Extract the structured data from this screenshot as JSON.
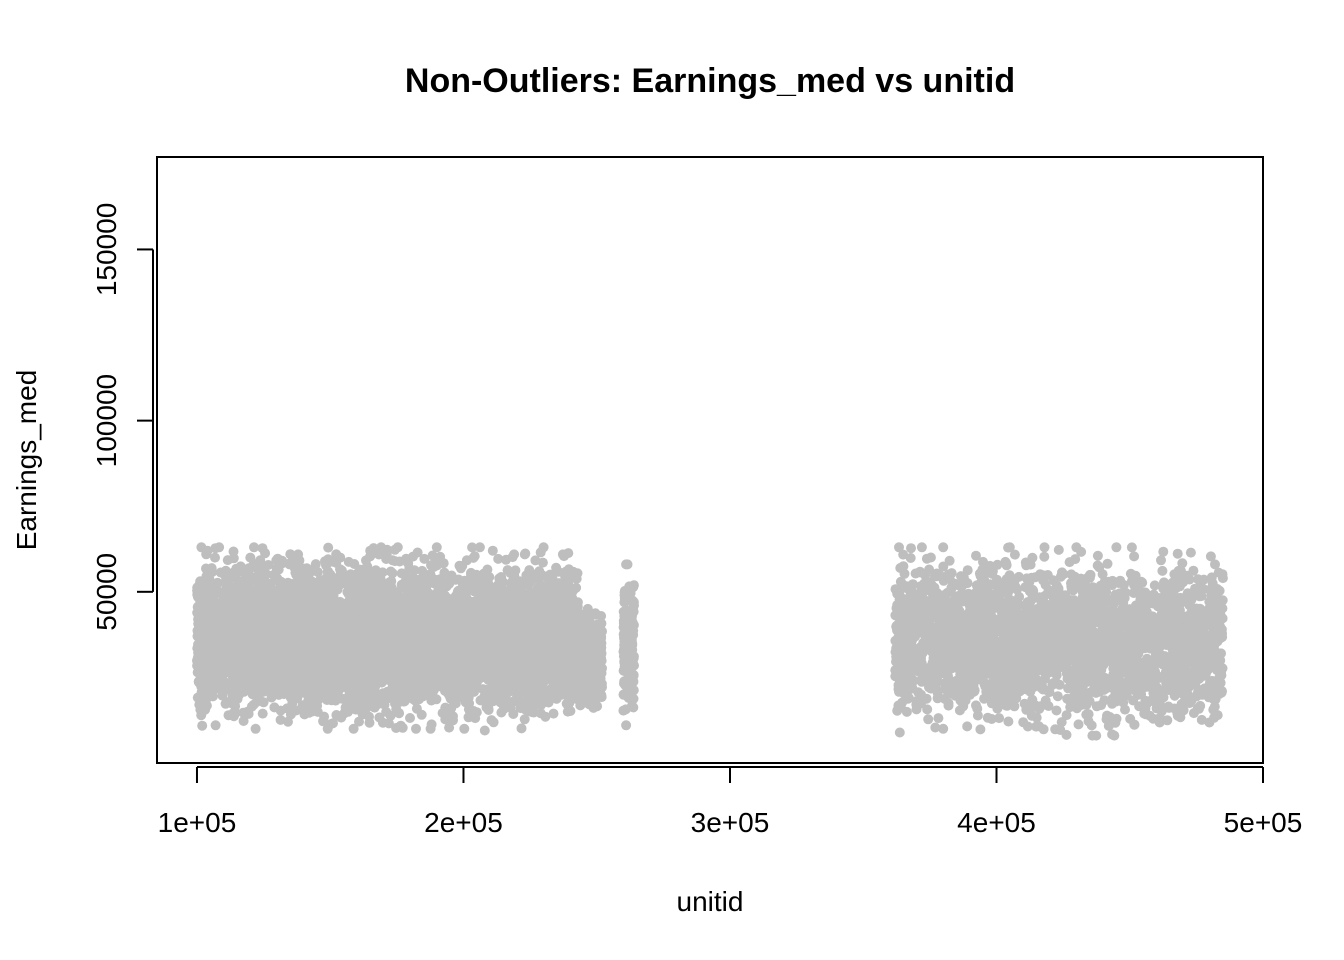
{
  "chart_data": {
    "type": "scatter",
    "title": "Non-Outliers: Earnings_med vs unitid",
    "xlabel": "unitid",
    "ylabel": "Earnings_med",
    "xlim": [
      85000,
      500000
    ],
    "ylim": [
      0,
      177000
    ],
    "x_ticks": [
      100000,
      200000,
      300000,
      400000,
      500000
    ],
    "x_tick_labels": [
      "1e+05",
      "2e+05",
      "3e+05",
      "4e+05",
      "5e+05"
    ],
    "y_ticks": [
      50000,
      100000,
      150000
    ],
    "y_tick_labels": [
      "50000",
      "100000",
      "150000"
    ],
    "point_color": "#BEBEBE",
    "grid": false,
    "legend": "none",
    "clusters": [
      {
        "x_range": [
          100000,
          243000
        ],
        "y_range": [
          10000,
          63000
        ],
        "density": "very high"
      },
      {
        "x_range": [
          243000,
          252000
        ],
        "y_range": [
          15000,
          45000
        ],
        "density": "medium"
      },
      {
        "x_range": [
          260000,
          264000
        ],
        "y_range": [
          10000,
          58000
        ],
        "density": "low"
      },
      {
        "x_range": [
          362000,
          485000
        ],
        "y_range": [
          8000,
          63000
        ],
        "density": "high"
      }
    ],
    "sample_points": [
      {
        "x": 104000,
        "y": 62000
      },
      {
        "x": 120000,
        "y": 60000
      },
      {
        "x": 135000,
        "y": 61000
      },
      {
        "x": 165000,
        "y": 62000
      },
      {
        "x": 190000,
        "y": 63000
      },
      {
        "x": 211000,
        "y": 62000
      },
      {
        "x": 107000,
        "y": 11000
      },
      {
        "x": 122000,
        "y": 10000
      },
      {
        "x": 208000,
        "y": 9500
      },
      {
        "x": 261000,
        "y": 58000
      },
      {
        "x": 261000,
        "y": 11000
      },
      {
        "x": 380000,
        "y": 10000
      },
      {
        "x": 372000,
        "y": 63000
      },
      {
        "x": 380000,
        "y": 63000
      },
      {
        "x": 405000,
        "y": 63000
      },
      {
        "x": 418000,
        "y": 63000
      },
      {
        "x": 430000,
        "y": 63000
      },
      {
        "x": 445000,
        "y": 63000
      },
      {
        "x": 436000,
        "y": 8000
      },
      {
        "x": 482000,
        "y": 58000
      },
      {
        "x": 483000,
        "y": 14000
      }
    ]
  }
}
